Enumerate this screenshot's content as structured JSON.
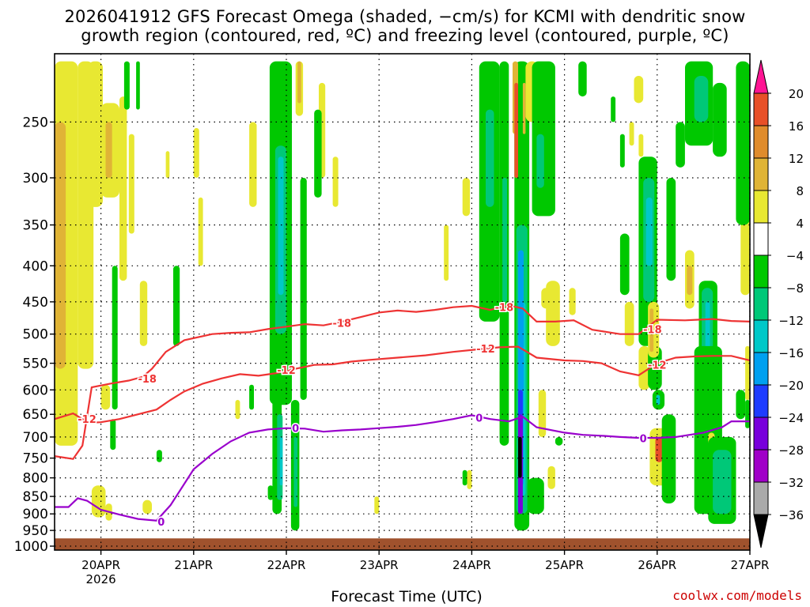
{
  "header": {
    "title_line1": "2026041912 GFS Forecast Omega (shaded, −cm/s) for KCMI with dendritic snow",
    "title_line2": "growth region (contoured, red, ºC) and freezing level (contoured, purple, ºC)"
  },
  "footer": {
    "xlabel": "Forecast Time (UTC)",
    "credit": "coolwx.com/models"
  },
  "chart_data": {
    "type": "heatmap",
    "title": "2026041912 GFS Forecast Omega (shaded, −cm/s) for KCMI with dendritic snow growth region (contoured, red, ºC) and freezing level (contoured, purple, ºC)",
    "xlabel": "Forecast Time (UTC)",
    "ylabel": "",
    "x_ticks": [
      "20APR",
      "21APR",
      "22APR",
      "23APR",
      "24APR",
      "25APR",
      "26APR",
      "27APR"
    ],
    "x_year_label": "2026",
    "x_range_days": [
      19.5,
      27.0
    ],
    "y_ticks_hPa": [
      250,
      300,
      350,
      400,
      450,
      500,
      550,
      600,
      650,
      700,
      750,
      800,
      850,
      900,
      950,
      1000
    ],
    "y_range_hPa": [
      200,
      1013
    ],
    "y_scale": "log-pressure",
    "grid": true,
    "colorbar": {
      "labels": [
        "20",
        "16",
        "12",
        "8",
        "4",
        "−4",
        "−8",
        "−12",
        "−16",
        "−20",
        "−24",
        "−28",
        "−32",
        "−36"
      ],
      "colors": [
        "#e8e832",
        "#e0b436",
        "#e08c2c",
        "#e85028",
        "#ffffff",
        "#00c800",
        "#00c878",
        "#00c8c8",
        "#00a0f0",
        "#1e3cff",
        "#7800dc",
        "#a000c8",
        "#aaaaaa",
        "#000000"
      ]
    },
    "freezing_level_0C": {
      "color": "#9900cc",
      "label": "0",
      "points": [
        [
          19.5,
          880
        ],
        [
          19.65,
          880
        ],
        [
          19.75,
          855
        ],
        [
          19.85,
          862
        ],
        [
          20.0,
          888
        ],
        [
          20.2,
          902
        ],
        [
          20.4,
          915
        ],
        [
          20.6,
          920
        ],
        [
          20.75,
          875
        ],
        [
          20.85,
          835
        ],
        [
          21.0,
          778
        ],
        [
          21.2,
          740
        ],
        [
          21.4,
          710
        ],
        [
          21.6,
          690
        ],
        [
          21.8,
          683
        ],
        [
          22.0,
          680
        ],
        [
          22.2,
          681
        ],
        [
          22.4,
          688
        ],
        [
          22.6,
          685
        ],
        [
          22.8,
          683
        ],
        [
          23.0,
          680
        ],
        [
          23.2,
          677
        ],
        [
          23.4,
          673
        ],
        [
          23.6,
          667
        ],
        [
          23.8,
          660
        ],
        [
          24.0,
          652
        ],
        [
          24.2,
          660
        ],
        [
          24.4,
          665
        ],
        [
          24.55,
          655
        ],
        [
          24.7,
          678
        ],
        [
          25.0,
          690
        ],
        [
          25.2,
          695
        ],
        [
          25.4,
          697
        ],
        [
          25.6,
          700
        ],
        [
          25.8,
          702
        ],
        [
          26.0,
          702
        ],
        [
          26.2,
          700
        ],
        [
          26.5,
          690
        ],
        [
          26.7,
          678
        ],
        [
          26.8,
          665
        ],
        [
          27.0,
          665
        ]
      ]
    },
    "dgz_contours": [
      {
        "label": "-12",
        "color": "#ee3333",
        "points": [
          [
            19.5,
            660
          ],
          [
            19.7,
            648
          ],
          [
            19.8,
            660
          ],
          [
            19.9,
            668
          ],
          [
            20.0,
            667
          ],
          [
            20.2,
            660
          ],
          [
            20.4,
            650
          ],
          [
            20.6,
            640
          ],
          [
            20.75,
            620
          ],
          [
            20.9,
            603
          ],
          [
            21.1,
            588
          ],
          [
            21.3,
            578
          ],
          [
            21.5,
            570
          ],
          [
            21.7,
            573
          ],
          [
            21.9,
            568
          ],
          [
            22.1,
            560
          ],
          [
            22.3,
            553
          ],
          [
            22.5,
            552
          ],
          [
            22.7,
            547
          ],
          [
            22.9,
            544
          ],
          [
            23.2,
            540
          ],
          [
            23.5,
            536
          ],
          [
            23.8,
            530
          ],
          [
            24.1,
            525
          ],
          [
            24.3,
            522
          ],
          [
            24.5,
            521
          ],
          [
            24.7,
            540
          ],
          [
            25.0,
            545
          ],
          [
            25.2,
            546
          ],
          [
            25.4,
            550
          ],
          [
            25.6,
            565
          ],
          [
            25.8,
            572
          ],
          [
            26.0,
            550
          ],
          [
            26.2,
            540
          ],
          [
            26.4,
            538
          ],
          [
            26.6,
            537
          ],
          [
            26.8,
            537
          ],
          [
            27.0,
            545
          ]
        ]
      },
      {
        "label": "-18",
        "color": "#ee3333",
        "points": [
          [
            19.5,
            745
          ],
          [
            19.7,
            752
          ],
          [
            19.8,
            720
          ],
          [
            19.9,
            595
          ],
          [
            20.1,
            588
          ],
          [
            20.3,
            582
          ],
          [
            20.45,
            575
          ],
          [
            20.55,
            560
          ],
          [
            20.7,
            530
          ],
          [
            20.9,
            510
          ],
          [
            21.2,
            500
          ],
          [
            21.4,
            498
          ],
          [
            21.6,
            497
          ],
          [
            21.8,
            492
          ],
          [
            22.0,
            488
          ],
          [
            22.2,
            484
          ],
          [
            22.4,
            486
          ],
          [
            22.6,
            480
          ],
          [
            22.8,
            473
          ],
          [
            23.0,
            466
          ],
          [
            23.2,
            463
          ],
          [
            23.4,
            465
          ],
          [
            23.6,
            462
          ],
          [
            23.8,
            458
          ],
          [
            24.0,
            456
          ],
          [
            24.2,
            462
          ],
          [
            24.4,
            455
          ],
          [
            24.55,
            460
          ],
          [
            24.7,
            480
          ],
          [
            24.9,
            480
          ],
          [
            25.1,
            478
          ],
          [
            25.3,
            493
          ],
          [
            25.6,
            500
          ],
          [
            25.8,
            500
          ],
          [
            26.0,
            477
          ],
          [
            26.3,
            478
          ],
          [
            26.6,
            476
          ],
          [
            26.8,
            479
          ],
          [
            27.0,
            480
          ]
        ]
      }
    ]
  }
}
